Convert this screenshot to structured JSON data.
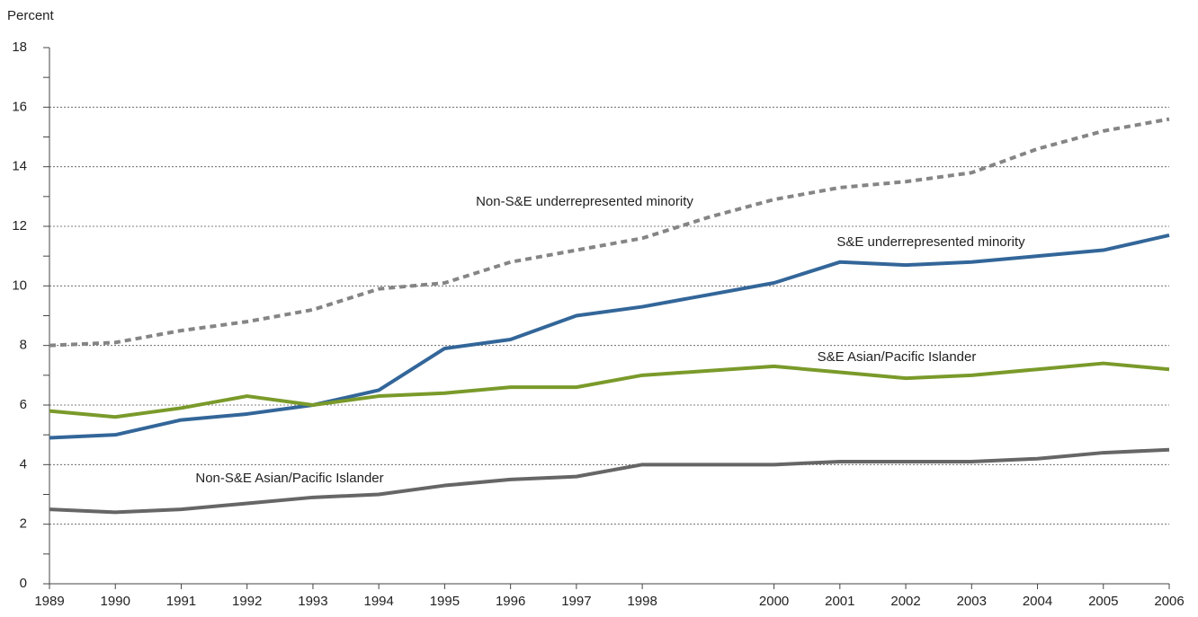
{
  "chart_data": {
    "type": "line",
    "y_label": "Percent",
    "x": [
      1989,
      1990,
      1991,
      1992,
      1993,
      1994,
      1995,
      1996,
      1997,
      1998,
      1999,
      2000,
      2001,
      2002,
      2003,
      2004,
      2005,
      2006
    ],
    "xlim": [
      1989,
      2006
    ],
    "xticks": [
      1989,
      1990,
      1991,
      1992,
      1993,
      1994,
      1995,
      1996,
      1997,
      1998,
      2000,
      2001,
      2002,
      2003,
      2004,
      2005,
      2006
    ],
    "ylim": [
      0,
      18
    ],
    "yticks": [
      0,
      2,
      4,
      6,
      8,
      10,
      12,
      14,
      16,
      18
    ],
    "grid": true,
    "series": [
      {
        "name": "Non-S&E underrepresented minority",
        "color": "#858585",
        "dashed": true,
        "values": [
          8.0,
          8.1,
          8.5,
          8.8,
          9.2,
          9.9,
          10.1,
          10.8,
          11.2,
          11.6,
          12.3,
          12.9,
          13.3,
          13.5,
          13.8,
          14.6,
          15.2,
          15.6
        ]
      },
      {
        "name": "S&E underrepresented minority",
        "color": "#336699",
        "values": [
          4.9,
          5.0,
          5.5,
          5.7,
          6.0,
          6.5,
          7.9,
          8.2,
          9.0,
          9.3,
          9.7,
          10.1,
          10.8,
          10.7,
          10.8,
          11.0,
          11.2,
          11.7
        ]
      },
      {
        "name": "S&E Asian/Pacific Islander",
        "color": "#7a9a2a",
        "values": [
          5.8,
          5.6,
          5.9,
          6.3,
          6.0,
          6.3,
          6.4,
          6.6,
          6.6,
          7.0,
          7.15,
          7.3,
          7.1,
          6.9,
          7.0,
          7.2,
          7.4,
          7.2
        ]
      },
      {
        "name": "Non-S&E Asian/Pacific Islander",
        "color": "#666666",
        "values": [
          2.5,
          2.4,
          2.5,
          2.7,
          2.9,
          3.0,
          3.3,
          3.5,
          3.6,
          4.0,
          4.0,
          4.0,
          4.1,
          4.1,
          4.1,
          4.2,
          4.4,
          4.5
        ]
      }
    ]
  }
}
